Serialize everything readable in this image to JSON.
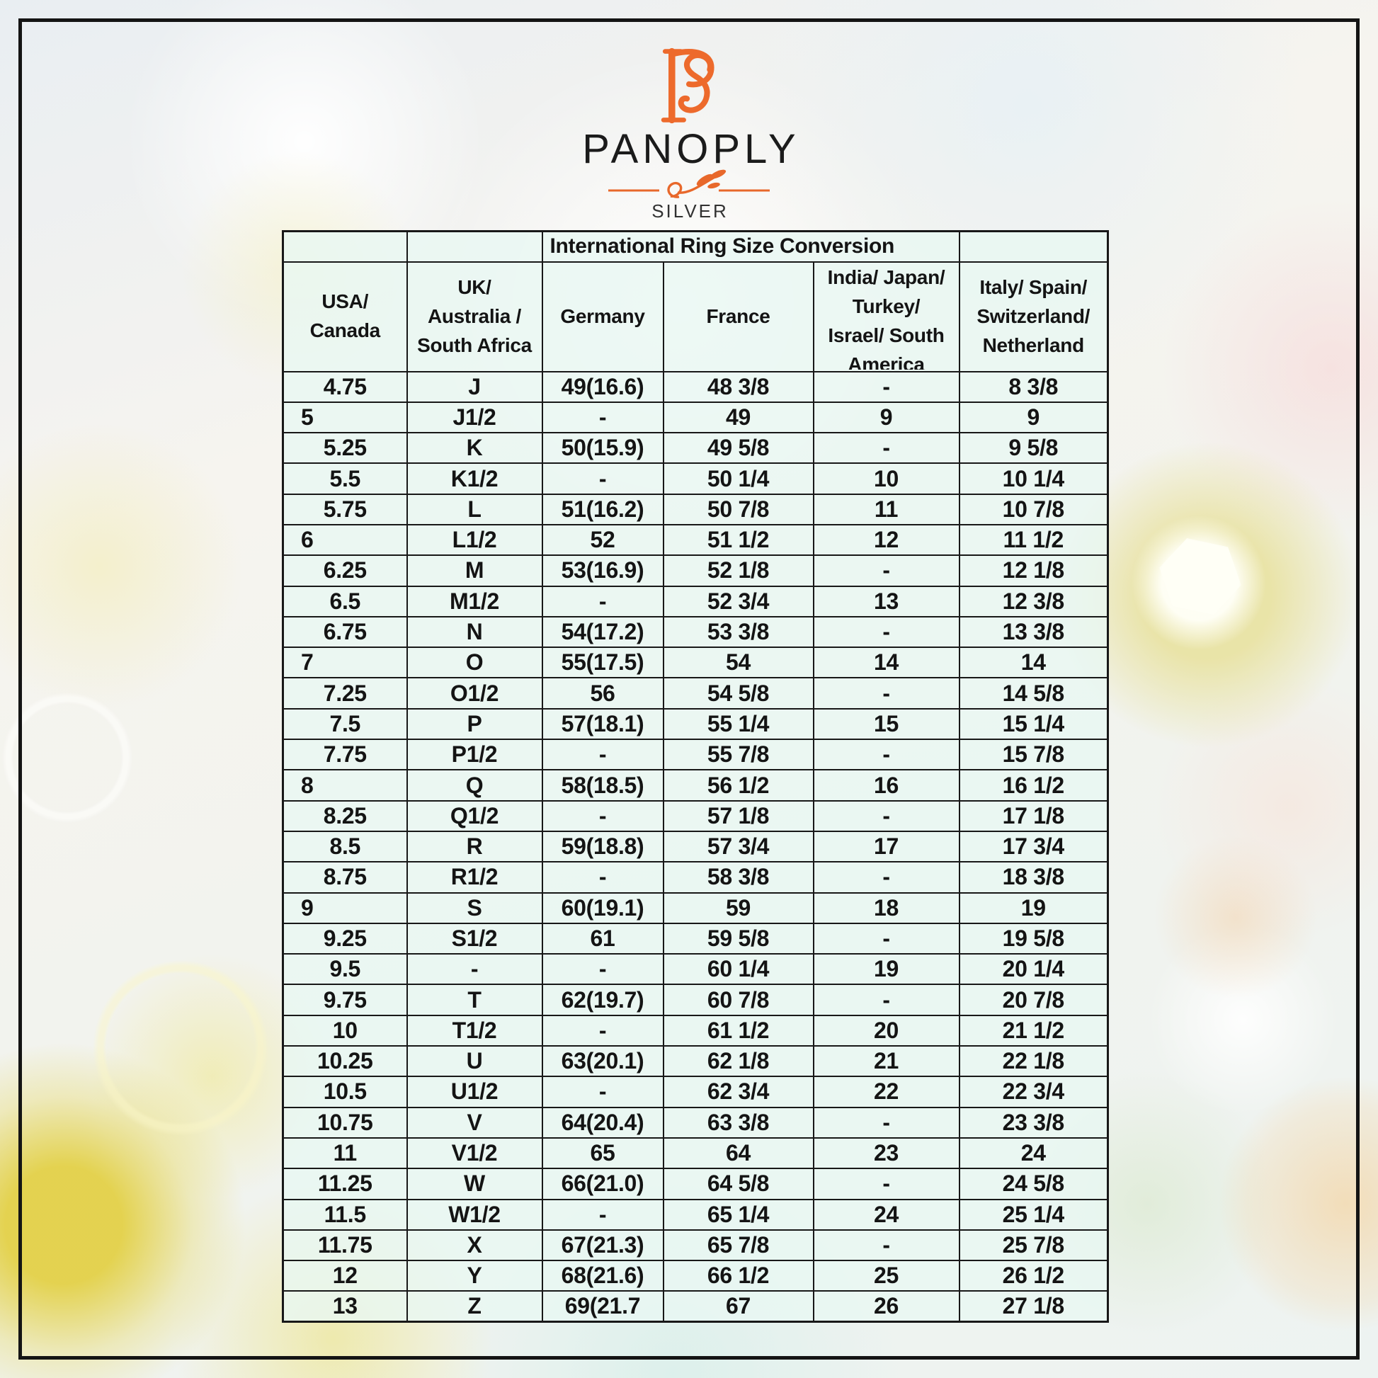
{
  "brand": {
    "monogram": "PS",
    "name": "PANOPLY",
    "tagline": "SILVER"
  },
  "colors": {
    "accent_orange": "#ED6A2C",
    "frame": "#141414",
    "table_border": "#181818",
    "cell_fill_mint": "#E9F8F3",
    "text": "#141414"
  },
  "table": {
    "title": "International Ring Size Conversion",
    "columns": [
      "USA/\nCanada",
      "UK/\nAustralia /\nSouth Africa",
      "Germany",
      "France",
      "India/ Japan/\nTurkey/\nIsrael/ South\nAmerica",
      "Italy/ Spain/\nSwitzerland/\nNetherland"
    ],
    "rows": [
      [
        "4.75",
        "J",
        "49(16.6)",
        "48 3/8",
        "-",
        "8 3/8"
      ],
      [
        "5",
        "J1/2",
        "-",
        "49",
        "9",
        "9"
      ],
      [
        "5.25",
        "K",
        "50(15.9)",
        "49 5/8",
        "-",
        "9 5/8"
      ],
      [
        "5.5",
        "K1/2",
        "-",
        "50 1/4",
        "10",
        "10 1/4"
      ],
      [
        "5.75",
        "L",
        "51(16.2)",
        "50 7/8",
        "11",
        "10 7/8"
      ],
      [
        "6",
        "L1/2",
        "52",
        "51 1/2",
        "12",
        "11 1/2"
      ],
      [
        "6.25",
        "M",
        "53(16.9)",
        "52 1/8",
        "-",
        "12 1/8"
      ],
      [
        "6.5",
        "M1/2",
        "-",
        "52 3/4",
        "13",
        "12 3/8"
      ],
      [
        "6.75",
        "N",
        "54(17.2)",
        "53 3/8",
        "-",
        "13 3/8"
      ],
      [
        "7",
        "O",
        "55(17.5)",
        "54",
        "14",
        "14"
      ],
      [
        "7.25",
        "O1/2",
        "56",
        "54 5/8",
        "-",
        "14 5/8"
      ],
      [
        "7.5",
        "P",
        "57(18.1)",
        "55 1/4",
        "15",
        "15 1/4"
      ],
      [
        "7.75",
        "P1/2",
        "-",
        "55 7/8",
        "-",
        "15 7/8"
      ],
      [
        "8",
        "Q",
        "58(18.5)",
        "56 1/2",
        "16",
        "16 1/2"
      ],
      [
        "8.25",
        "Q1/2",
        "-",
        "57 1/8",
        "-",
        "17 1/8"
      ],
      [
        "8.5",
        "R",
        "59(18.8)",
        "57 3/4",
        "17",
        "17 3/4"
      ],
      [
        "8.75",
        "R1/2",
        "-",
        "58 3/8",
        "-",
        "18 3/8"
      ],
      [
        "9",
        "S",
        "60(19.1)",
        "59",
        "18",
        "19"
      ],
      [
        "9.25",
        "S1/2",
        "61",
        "59 5/8",
        "-",
        "19 5/8"
      ],
      [
        "9.5",
        "-",
        "-",
        "60 1/4",
        "19",
        "20 1/4"
      ],
      [
        "9.75",
        "T",
        "62(19.7)",
        "60 7/8",
        "-",
        "20 7/8"
      ],
      [
        "10",
        "T1/2",
        "-",
        "61 1/2",
        "20",
        "21 1/2"
      ],
      [
        "10.25",
        "U",
        "63(20.1)",
        "62 1/8",
        "21",
        "22 1/8"
      ],
      [
        "10.5",
        "U1/2",
        "-",
        "62 3/4",
        "22",
        "22 3/4"
      ],
      [
        "10.75",
        "V",
        "64(20.4)",
        "63 3/8",
        "-",
        "23 3/8"
      ],
      [
        "11",
        "V1/2",
        "65",
        "64",
        "23",
        "24"
      ],
      [
        "11.25",
        "W",
        "66(21.0)",
        "64 5/8",
        "-",
        "24 5/8"
      ],
      [
        "11.5",
        "W1/2",
        "-",
        "65 1/4",
        "24",
        "25 1/4"
      ],
      [
        "11.75",
        "X",
        "67(21.3)",
        "65 7/8",
        "-",
        "25 7/8"
      ],
      [
        "12",
        "Y",
        "68(21.6)",
        "66 1/2",
        "25",
        "26 1/2"
      ],
      [
        "13",
        "Z",
        "69(21.7",
        "67",
        "26",
        "27 1/8"
      ]
    ]
  }
}
